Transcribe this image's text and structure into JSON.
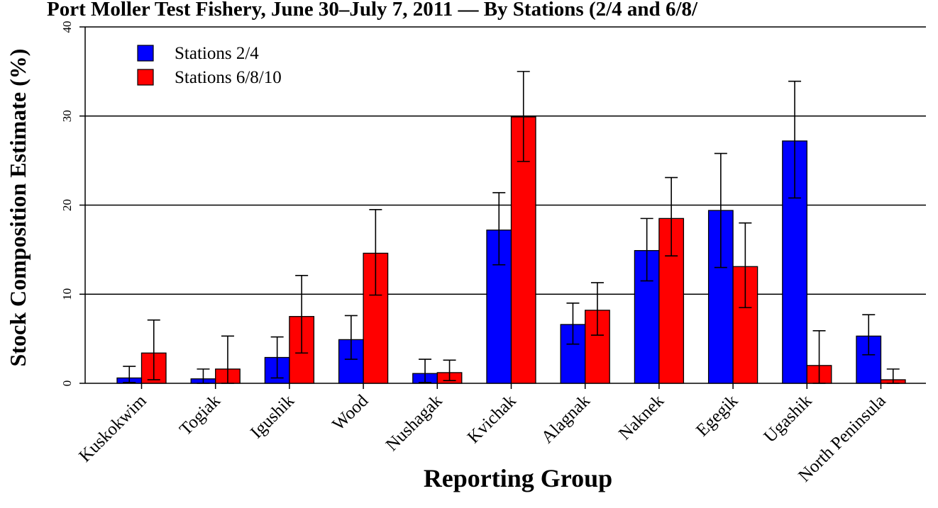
{
  "chart_data": {
    "type": "bar",
    "title": "Port Moller Test Fishery, June 30–July 7, 2011 — By Stations (2/4 and 6/8/",
    "xlabel": "Reporting Group",
    "ylabel": "Stock Composition Estimate (%)",
    "ylim": [
      0,
      40
    ],
    "yticks": [
      "0",
      "10",
      "20",
      "30",
      "40"
    ],
    "grid": "horizontal",
    "legend_position": "top-left",
    "categories": [
      "Kuskokwim",
      "Togiak",
      "Igushik",
      "Wood",
      "Nushagak",
      "Kvichak",
      "Alagnak",
      "Naknek",
      "Egegik",
      "Ugashik",
      "North Peninsula"
    ],
    "series": [
      {
        "name": "Stations 2/4",
        "color": "#0000ff",
        "values": [
          0.6,
          0.5,
          2.9,
          4.9,
          1.1,
          17.2,
          6.6,
          14.9,
          19.4,
          27.2,
          5.3
        ],
        "lower": [
          0.1,
          0.0,
          0.6,
          2.7,
          0.1,
          13.3,
          4.4,
          11.5,
          13.0,
          20.8,
          3.2
        ],
        "upper": [
          1.9,
          1.6,
          5.2,
          7.6,
          2.7,
          21.4,
          9.0,
          18.5,
          25.8,
          33.9,
          7.7
        ]
      },
      {
        "name": "Stations 6/8/10",
        "color": "#ff0000",
        "values": [
          3.4,
          1.6,
          7.5,
          14.6,
          1.2,
          29.9,
          8.2,
          18.5,
          13.1,
          2.0,
          0.4
        ],
        "lower": [
          0.4,
          0.0,
          3.4,
          9.9,
          0.3,
          24.9,
          5.4,
          14.3,
          8.5,
          0.0,
          0.0
        ],
        "upper": [
          7.1,
          5.3,
          12.1,
          19.5,
          2.6,
          35.0,
          11.3,
          23.1,
          18.0,
          5.9,
          1.6
        ]
      }
    ]
  }
}
